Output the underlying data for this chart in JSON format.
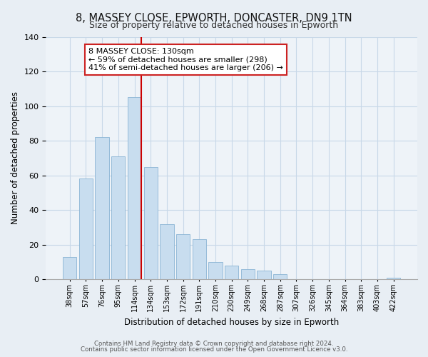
{
  "title": "8, MASSEY CLOSE, EPWORTH, DONCASTER, DN9 1TN",
  "subtitle": "Size of property relative to detached houses in Epworth",
  "xlabel": "Distribution of detached houses by size in Epworth",
  "ylabel": "Number of detached properties",
  "bar_labels": [
    "38sqm",
    "57sqm",
    "76sqm",
    "95sqm",
    "114sqm",
    "134sqm",
    "153sqm",
    "172sqm",
    "191sqm",
    "210sqm",
    "230sqm",
    "249sqm",
    "268sqm",
    "287sqm",
    "307sqm",
    "326sqm",
    "345sqm",
    "364sqm",
    "383sqm",
    "403sqm",
    "422sqm"
  ],
  "bar_values": [
    13,
    58,
    82,
    71,
    105,
    65,
    32,
    26,
    23,
    10,
    8,
    6,
    5,
    3,
    0,
    0,
    0,
    0,
    0,
    0,
    1
  ],
  "bar_color": "#c8ddef",
  "bar_edge_color": "#8ab4d4",
  "vline_x_index": 4,
  "vline_color": "#cc0000",
  "ylim": [
    0,
    140
  ],
  "yticks": [
    0,
    20,
    40,
    60,
    80,
    100,
    120,
    140
  ],
  "annotation_title": "8 MASSEY CLOSE: 130sqm",
  "annotation_line1": "← 59% of detached houses are smaller (298)",
  "annotation_line2": "41% of semi-detached houses are larger (206) →",
  "footer1": "Contains HM Land Registry data © Crown copyright and database right 2024.",
  "footer2": "Contains public sector information licensed under the Open Government Licence v3.0.",
  "background_color": "#e8eef4",
  "plot_background_color": "#eef3f8",
  "grid_color": "#c8d8e8"
}
